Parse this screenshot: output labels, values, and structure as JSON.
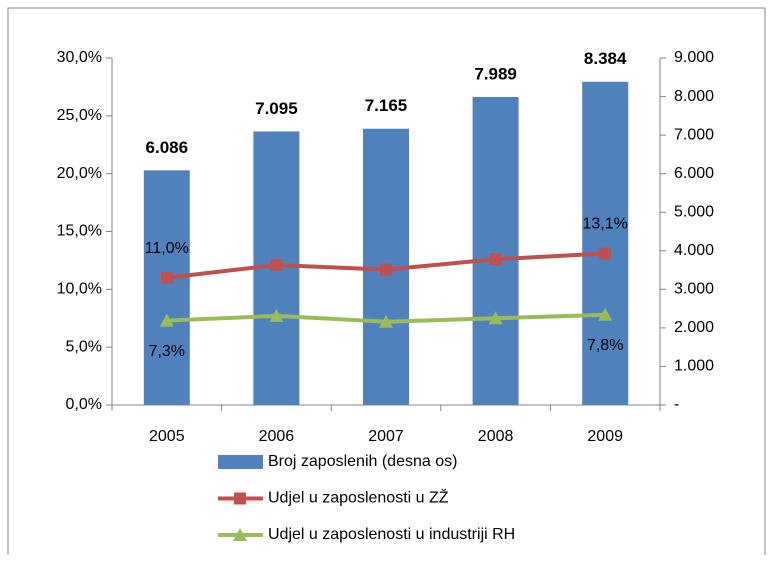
{
  "chart_data": {
    "type": "combo",
    "categories": [
      "2005",
      "2006",
      "2007",
      "2008",
      "2009"
    ],
    "series": [
      {
        "name": "Broj zaposlenih (desna os)",
        "type": "bar",
        "axis": "y2",
        "color": "#4f81bd",
        "values": [
          6086,
          7095,
          7165,
          7989,
          8384
        ],
        "value_labels": [
          "6.086",
          "7.095",
          "7.165",
          "7.989",
          "8.384"
        ]
      },
      {
        "name": "Udjel u zaposlenosti u ZŽ",
        "type": "line",
        "marker": "square",
        "color": "#c0504d",
        "values": [
          11.0,
          12.1,
          11.7,
          12.6,
          13.1
        ],
        "value_labels": [
          "11,0%",
          null,
          null,
          null,
          "13,1%"
        ]
      },
      {
        "name": "Udjel u zaposlenosti u industriji RH",
        "type": "line",
        "marker": "triangle",
        "color": "#9bbb59",
        "values": [
          7.3,
          7.7,
          7.2,
          7.5,
          7.8
        ],
        "value_labels": [
          "7,3%",
          null,
          null,
          null,
          "7,8%"
        ]
      }
    ],
    "ylim": [
      0,
      30
    ],
    "yticks": [
      {
        "value": 0,
        "label": "0,0%"
      },
      {
        "value": 5,
        "label": "5,0%"
      },
      {
        "value": 10,
        "label": "10,0%"
      },
      {
        "value": 15,
        "label": "15,0%"
      },
      {
        "value": 20,
        "label": "20,0%"
      },
      {
        "value": 25,
        "label": "25,0%"
      },
      {
        "value": 30,
        "label": "30,0%"
      }
    ],
    "y2lim": [
      0,
      9000
    ],
    "y2ticks": [
      {
        "value": 0,
        "label": "-"
      },
      {
        "value": 1000,
        "label": "1.000"
      },
      {
        "value": 2000,
        "label": "2.000"
      },
      {
        "value": 3000,
        "label": "3.000"
      },
      {
        "value": 4000,
        "label": "4.000"
      },
      {
        "value": 5000,
        "label": "5.000"
      },
      {
        "value": 6000,
        "label": "6.000"
      },
      {
        "value": 7000,
        "label": "7.000"
      },
      {
        "value": 8000,
        "label": "8.000"
      },
      {
        "value": 9000,
        "label": "9.000"
      }
    ],
    "grid": false
  }
}
